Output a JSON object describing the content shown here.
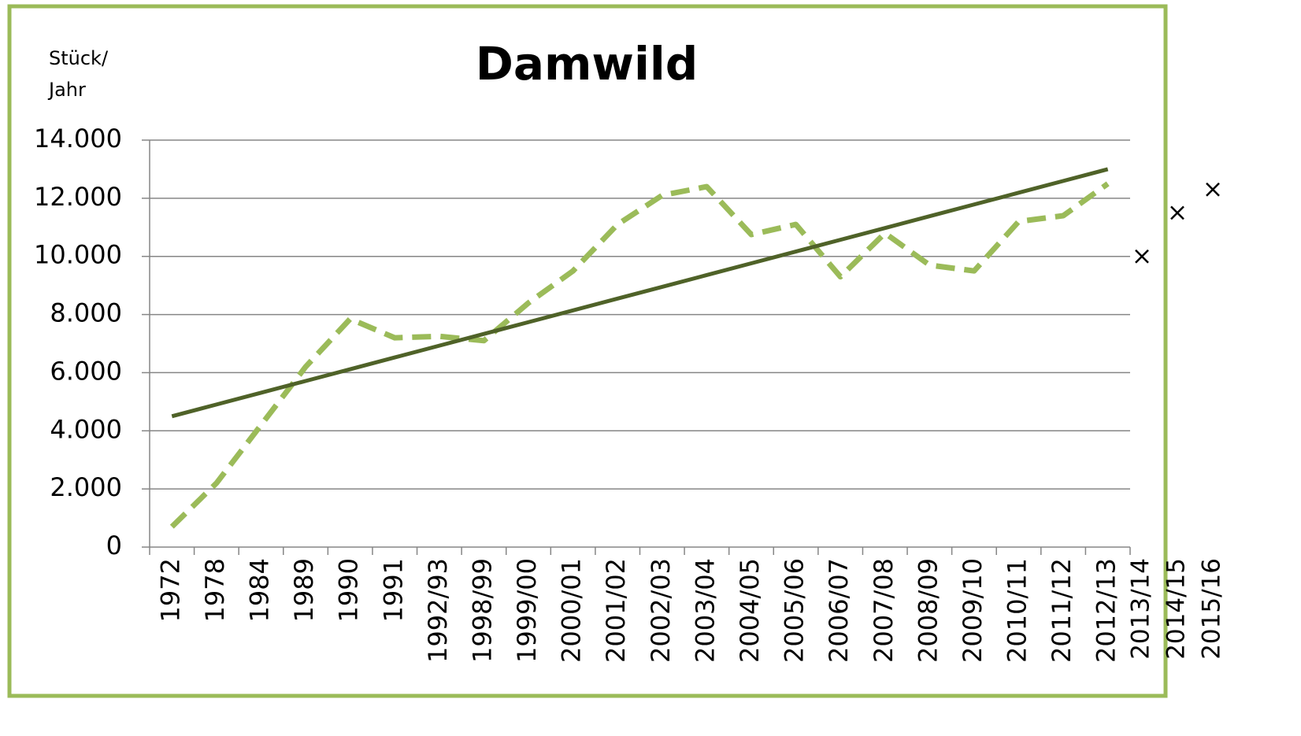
{
  "chart_data": {
    "type": "line",
    "title": "Damwild",
    "y_label": [
      "Stück/",
      "Jahr"
    ],
    "categories": [
      "1972",
      "1978",
      "1984",
      "1989",
      "1990",
      "1991",
      "1992/93",
      "1998/99",
      "1999/00",
      "2000/01",
      "2001/02",
      "2002/03",
      "2003/04",
      "2004/05",
      "2005/06",
      "2006/07",
      "2007/08",
      "2008/09",
      "2009/10",
      "2010/11",
      "2011/12",
      "2012/13"
    ],
    "series": [
      {
        "color": "#9bbb59",
        "dash": true,
        "values": [
          700,
          2200,
          4200,
          6200,
          7850,
          7200,
          7250,
          7100,
          8400,
          9500,
          11100,
          12100,
          12400,
          10750,
          11100,
          9300,
          10800,
          9700,
          9500,
          11200,
          11400,
          12500
        ]
      },
      {
        "color": "#4f6228",
        "dash": false,
        "values": [
          4500,
          4905,
          5310,
          5714,
          6119,
          6524,
          6929,
          7333,
          7738,
          8143,
          8548,
          8952,
          9357,
          9762,
          10167,
          10571,
          10976,
          11381,
          11786,
          12190,
          12595,
          13000
        ]
      }
    ],
    "extra": {
      "categories": [
        "2013/14",
        "2014/15",
        "2015/16"
      ],
      "values": [
        10000,
        11500,
        12300
      ],
      "marker": "x"
    },
    "ylim": [
      0,
      14000
    ],
    "yticks": [
      0,
      {
        "value": 2000,
        "label": "2.000"
      },
      {
        "value": 4000,
        "label": "4.000"
      },
      {
        "value": 6000,
        "label": "6.000"
      },
      {
        "value": 8000,
        "label": "8.000"
      },
      {
        "value": 10000,
        "label": "10.000"
      },
      {
        "value": 12000,
        "label": "12.000"
      },
      {
        "value": 14000,
        "label": "14.000"
      }
    ],
    "grid": true,
    "frame_color": "#9bbb59"
  }
}
